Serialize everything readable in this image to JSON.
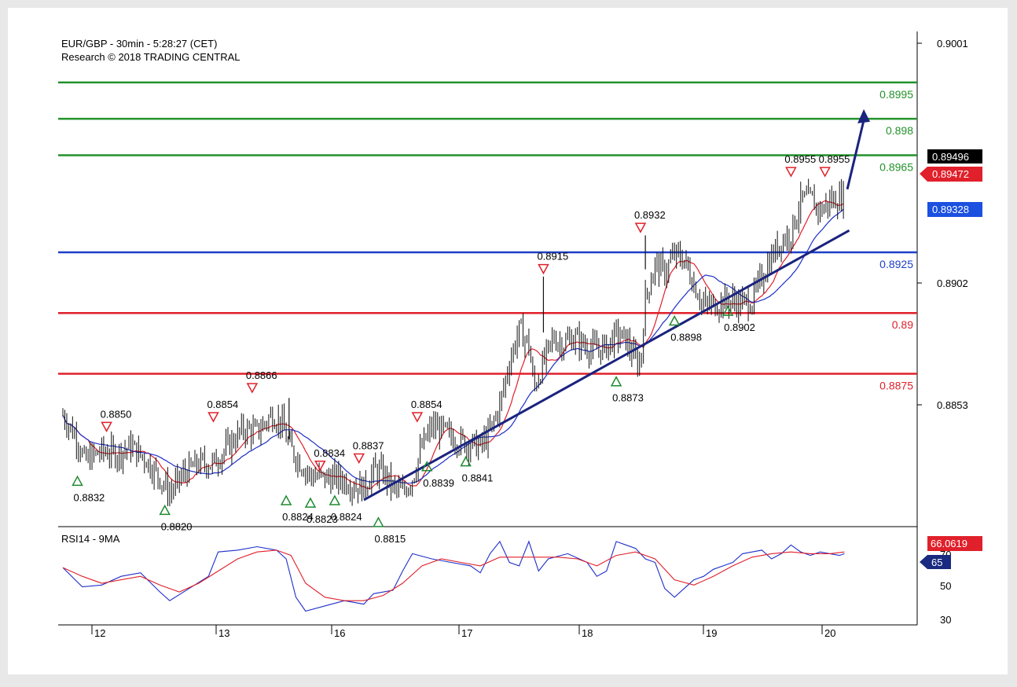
{
  "chart_data": [
    {
      "type": "candlestick",
      "title": "EUR/GBP - 30min - 5:28:27 (CET)",
      "subtitle": "Research © 2018 TRADING CENTRAL",
      "x_ticks": [
        "12",
        "13",
        "16",
        "17",
        "18",
        "19",
        "20"
      ],
      "y_ticks": [
        0.9001,
        0.8902,
        0.8853
      ],
      "ylim": [
        0.8812,
        0.9016
      ],
      "price_tags": [
        {
          "value": "0.89496",
          "color": "#000000"
        },
        {
          "value": "0.89472",
          "color": "#e0202a"
        },
        {
          "value": "0.89328",
          "color": "#1b50e0"
        }
      ],
      "levels": [
        {
          "value": 0.8995,
          "label": "0.8995",
          "color": "#22922a"
        },
        {
          "value": 0.898,
          "label": "0.898",
          "color": "#22922a"
        },
        {
          "value": 0.8965,
          "label": "0.8965",
          "color": "#22922a"
        },
        {
          "value": 0.8925,
          "label": "0.8925",
          "color": "#1d3fc8"
        },
        {
          "value": 0.89,
          "label": "0.89",
          "color": "#e0202a"
        },
        {
          "value": 0.8875,
          "label": "0.8875",
          "color": "#e0202a"
        }
      ],
      "price_path": [
        [
          0,
          0.8858
        ],
        [
          1.5,
          0.8848
        ],
        [
          2.2,
          0.8839
        ],
        [
          4,
          0.8843
        ],
        [
          5.5,
          0.8842
        ],
        [
          7,
          0.8845
        ],
        [
          8.5,
          0.884
        ],
        [
          10,
          0.8832
        ],
        [
          11,
          0.8826
        ],
        [
          12.5,
          0.8834
        ],
        [
          14,
          0.8838
        ],
        [
          15.5,
          0.8838
        ],
        [
          17,
          0.8845
        ],
        [
          18.5,
          0.8852
        ],
        [
          20,
          0.8851
        ],
        [
          21.5,
          0.8858
        ],
        [
          22.5,
          0.8855
        ],
        [
          23.3,
          0.8845
        ],
        [
          24.5,
          0.8838
        ],
        [
          25.5,
          0.8833
        ],
        [
          27,
          0.8832
        ],
        [
          28.5,
          0.8832
        ],
        [
          30,
          0.8829
        ],
        [
          31,
          0.8828
        ],
        [
          32,
          0.8835
        ],
        [
          33,
          0.8834
        ],
        [
          34,
          0.8828
        ],
        [
          35,
          0.8826
        ],
        [
          36,
          0.8832
        ],
        [
          37,
          0.8845
        ],
        [
          38,
          0.8853
        ],
        [
          39,
          0.8852
        ],
        [
          40,
          0.8849
        ],
        [
          41,
          0.8847
        ],
        [
          42,
          0.8846
        ],
        [
          43,
          0.8845
        ],
        [
          44,
          0.8851
        ],
        [
          45,
          0.8862
        ],
        [
          46,
          0.888
        ],
        [
          47,
          0.8893
        ],
        [
          48,
          0.8887
        ],
        [
          48.5,
          0.8869
        ],
        [
          49.2,
          0.8876
        ],
        [
          50.5,
          0.889
        ],
        [
          51.5,
          0.8887
        ],
        [
          52.5,
          0.889
        ],
        [
          54,
          0.8886
        ],
        [
          55,
          0.8885
        ],
        [
          56,
          0.8886
        ],
        [
          57,
          0.8891
        ],
        [
          58,
          0.8889
        ],
        [
          59,
          0.888
        ],
        [
          59.5,
          0.8879
        ],
        [
          60,
          0.8906
        ],
        [
          61,
          0.892
        ],
        [
          62,
          0.8917
        ],
        [
          63,
          0.8924
        ],
        [
          64,
          0.8922
        ],
        [
          65,
          0.8912
        ],
        [
          66,
          0.8903
        ],
        [
          67,
          0.8903
        ],
        [
          68,
          0.8905
        ],
        [
          69,
          0.8905
        ],
        [
          70,
          0.8904
        ],
        [
          71,
          0.8905
        ],
        [
          72,
          0.8915
        ],
        [
          73,
          0.8923
        ],
        [
          74,
          0.893
        ],
        [
          75,
          0.8933
        ],
        [
          76,
          0.8946
        ],
        [
          77,
          0.8947
        ],
        [
          78,
          0.8942
        ],
        [
          79,
          0.8946
        ],
        [
          80,
          0.8947
        ],
        [
          80.5,
          0.8949
        ]
      ],
      "price_x_range": [
        0,
        80.5
      ],
      "forecast_arrow": {
        "from": [
          80.8,
          0.8951
        ],
        "to": [
          82.5,
          0.8984
        ]
      },
      "trendline": {
        "from": [
          31,
          0.8823
        ],
        "to": [
          81,
          0.8934
        ]
      },
      "resistance_markers": [
        {
          "label": "0.8850",
          "x": 4.5,
          "y": 0.8853
        },
        {
          "label": "0.8854",
          "x": 15.5,
          "y": 0.8857
        },
        {
          "label": "0.8866",
          "x": 19.5,
          "y": 0.8869
        },
        {
          "label": "0.8834",
          "x": 26.5,
          "y": 0.8837
        },
        {
          "label": "0.8837",
          "x": 30.5,
          "y": 0.884
        },
        {
          "label": "0.8854",
          "x": 36.5,
          "y": 0.8857
        },
        {
          "label": "0.8915",
          "x": 49.5,
          "y": 0.8918
        },
        {
          "label": "0.8932",
          "x": 59.5,
          "y": 0.8935
        },
        {
          "label": "0.8955",
          "x": 75,
          "y": 0.8958
        },
        {
          "label": "0.8955",
          "x": 78.5,
          "y": 0.8958
        }
      ],
      "support_markers": [
        {
          "label": "0.8832",
          "x": 1.5,
          "y": 0.8831
        },
        {
          "label": "0.8820",
          "x": 10.5,
          "y": 0.8819
        },
        {
          "label": "0.8824",
          "x": 23,
          "y": 0.8823
        },
        {
          "label": "0.8823",
          "x": 25.5,
          "y": 0.8822
        },
        {
          "label": "0.8824",
          "x": 28,
          "y": 0.8823
        },
        {
          "label": "0.8815",
          "x": 32.5,
          "y": 0.8814
        },
        {
          "label": "0.8839",
          "x": 37.5,
          "y": 0.8837
        },
        {
          "label": "0.8841",
          "x": 41.5,
          "y": 0.8839
        },
        {
          "label": "0.8873",
          "x": 57,
          "y": 0.8872
        },
        {
          "label": "0.8898",
          "x": 63,
          "y": 0.8897
        },
        {
          "label": "0.8902",
          "x": 68.5,
          "y": 0.8901
        }
      ]
    },
    {
      "type": "line",
      "title": "RSI14 - 9MA",
      "y_ticks": [
        70,
        50,
        30
      ],
      "ylim": [
        25,
        76
      ],
      "x_range": [
        0,
        80.5
      ],
      "price_tags": [
        {
          "value": "66.0619",
          "color": "#e0202a"
        },
        {
          "value": "65",
          "color": "#1a2a80"
        }
      ],
      "series": [
        {
          "color": "#1d2fc8",
          "values": [
            [
              0,
              57
            ],
            [
              2,
              46
            ],
            [
              4,
              47
            ],
            [
              6,
              52
            ],
            [
              8,
              54
            ],
            [
              10,
              43
            ],
            [
              11,
              38
            ],
            [
              13,
              45
            ],
            [
              15,
              52
            ],
            [
              16,
              66
            ],
            [
              18,
              67
            ],
            [
              20,
              69
            ],
            [
              22,
              67
            ],
            [
              23,
              62
            ],
            [
              24,
              40
            ],
            [
              25,
              32
            ],
            [
              27,
              35
            ],
            [
              29,
              38
            ],
            [
              31,
              36
            ],
            [
              32,
              42
            ],
            [
              34,
              44
            ],
            [
              35,
              55
            ],
            [
              36,
              65
            ],
            [
              38,
              62
            ],
            [
              40,
              60
            ],
            [
              42,
              58
            ],
            [
              43,
              54
            ],
            [
              44,
              65
            ],
            [
              45,
              72
            ],
            [
              46,
              60
            ],
            [
              47,
              58
            ],
            [
              48,
              72
            ],
            [
              49,
              55
            ],
            [
              50,
              62
            ],
            [
              52,
              65
            ],
            [
              54,
              60
            ],
            [
              55,
              52
            ],
            [
              56,
              55
            ],
            [
              57,
              72
            ],
            [
              58,
              70
            ],
            [
              59,
              68
            ],
            [
              60,
              62
            ],
            [
              61,
              60
            ],
            [
              62,
              45
            ],
            [
              63,
              40
            ],
            [
              64,
              45
            ],
            [
              65,
              50
            ],
            [
              66,
              52
            ],
            [
              67,
              56
            ],
            [
              68,
              58
            ],
            [
              69,
              60
            ],
            [
              70,
              65
            ],
            [
              71,
              66
            ],
            [
              72,
              67
            ],
            [
              73,
              62
            ],
            [
              74,
              65
            ],
            [
              75,
              70
            ],
            [
              76,
              66
            ],
            [
              77,
              64
            ],
            [
              78,
              66
            ],
            [
              79,
              65
            ],
            [
              80,
              64
            ],
            [
              80.5,
              65
            ]
          ]
        },
        {
          "color": "#e0202a",
          "values": [
            [
              0,
              57
            ],
            [
              2,
              52
            ],
            [
              4,
              48
            ],
            [
              6,
              50
            ],
            [
              8,
              52
            ],
            [
              10,
              47
            ],
            [
              12,
              43
            ],
            [
              14,
              48
            ],
            [
              16,
              55
            ],
            [
              18,
              62
            ],
            [
              20,
              66
            ],
            [
              22,
              67
            ],
            [
              23.5,
              64
            ],
            [
              25,
              48
            ],
            [
              27,
              40
            ],
            [
              29,
              38
            ],
            [
              31,
              38
            ],
            [
              33,
              41
            ],
            [
              35,
              48
            ],
            [
              37,
              58
            ],
            [
              39,
              62
            ],
            [
              41,
              60
            ],
            [
              43,
              58
            ],
            [
              45,
              63
            ],
            [
              47,
              63
            ],
            [
              49,
              63
            ],
            [
              51,
              63
            ],
            [
              53,
              62
            ],
            [
              55,
              58
            ],
            [
              57,
              64
            ],
            [
              59,
              66
            ],
            [
              61,
              62
            ],
            [
              63,
              50
            ],
            [
              65,
              47
            ],
            [
              67,
              52
            ],
            [
              69,
              58
            ],
            [
              71,
              63
            ],
            [
              73,
              65
            ],
            [
              75,
              66
            ],
            [
              77,
              65
            ],
            [
              79,
              65
            ],
            [
              80.5,
              66
            ]
          ]
        }
      ]
    }
  ]
}
